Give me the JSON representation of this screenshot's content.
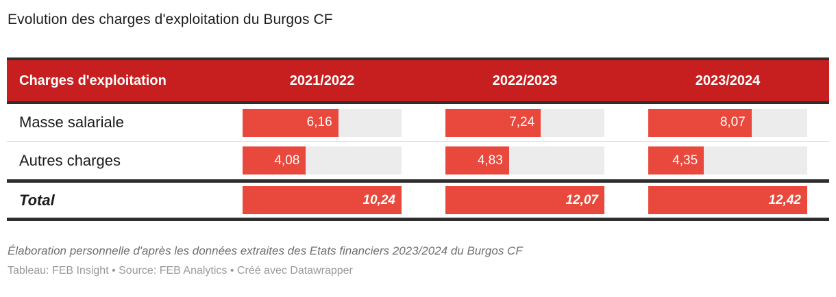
{
  "title": "Evolution des charges d'exploitation du Burgos CF",
  "table": {
    "header": {
      "label": "Charges d'exploitation",
      "columns": [
        "2021/2022",
        "2022/2023",
        "2023/2024"
      ]
    },
    "rows": [
      {
        "label": "Masse salariale",
        "values": [
          "6,16",
          "7,24",
          "8,07"
        ],
        "fractions": [
          0.602,
          0.6,
          0.65
        ]
      },
      {
        "label": "Autres charges",
        "values": [
          "4,08",
          "4,83",
          "4,35"
        ],
        "fractions": [
          0.398,
          0.4,
          0.35
        ]
      }
    ],
    "total": {
      "label": "Total",
      "values": [
        "10,24",
        "12,07",
        "12,42"
      ],
      "fractions": [
        1,
        1,
        1
      ]
    }
  },
  "footer": {
    "note": "Élaboration personnelle d'après les données extraites des Etats financiers 2023/2024 du Burgos CF",
    "credit": "Tableau: FEB Insight • Source: FEB Analytics • Créé avec Datawrapper"
  },
  "colors": {
    "header_background": "#c71f1f",
    "bar_fill": "#e8493c",
    "bar_track": "#ececec",
    "border_dark": "#2e2e2e"
  },
  "chart_data": {
    "type": "table",
    "title": "Evolution des charges d'exploitation du Burgos CF",
    "categories": [
      "2021/2022",
      "2022/2023",
      "2023/2024"
    ],
    "series": [
      {
        "name": "Masse salariale",
        "values": [
          6.16,
          7.24,
          8.07
        ]
      },
      {
        "name": "Autres charges",
        "values": [
          4.08,
          4.83,
          4.35
        ]
      },
      {
        "name": "Total",
        "values": [
          10.24,
          12.07,
          12.42
        ]
      }
    ],
    "bar_normalization": "per-column, relative to column total (Total bar = 100%)",
    "value_format": "decimal comma, millions",
    "notes": "Bars embedded in table cells; values printed right-aligned inside red bars"
  }
}
